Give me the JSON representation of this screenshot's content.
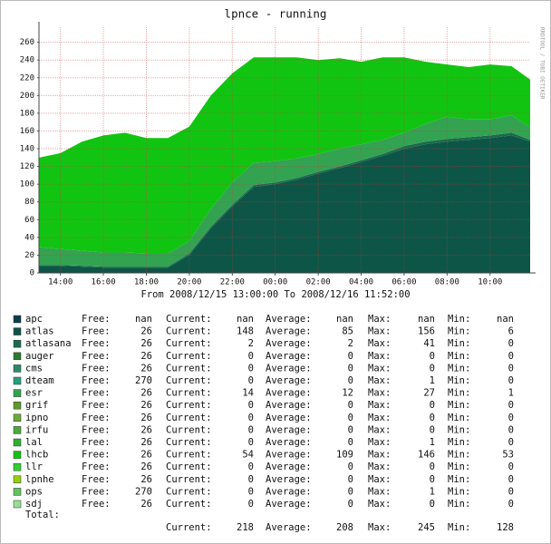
{
  "chart_data": {
    "type": "stacked-area",
    "title": "lpnce - running",
    "subtitle": "From 2008/12/15 13:00:00 To 2008/12/16 11:52:00",
    "watermark": "RRDTOOL / TOBI OETIKER",
    "x": [
      "13:00",
      "14:00",
      "15:00",
      "16:00",
      "17:00",
      "18:00",
      "19:00",
      "20:00",
      "21:00",
      "22:00",
      "23:00",
      "00:00",
      "01:00",
      "02:00",
      "03:00",
      "04:00",
      "05:00",
      "06:00",
      "07:00",
      "08:00",
      "09:00",
      "10:00",
      "11:00",
      "11:52"
    ],
    "xlim": [
      "13:00",
      "11:52"
    ],
    "xticks": [
      "14:00",
      "16:00",
      "18:00",
      "20:00",
      "22:00",
      "00:00",
      "02:00",
      "04:00",
      "06:00",
      "08:00",
      "10:00"
    ],
    "ylim": [
      0,
      277
    ],
    "yticks": [
      0,
      20,
      40,
      60,
      80,
      100,
      120,
      140,
      160,
      180,
      200,
      220,
      240,
      260
    ],
    "grid": true,
    "legend_labels": {
      "free": "Free:",
      "current": "Current:",
      "average": "Average:",
      "max": "Max:",
      "min": "Min:"
    },
    "series": [
      {
        "name": "apc",
        "color": "#0b3c4e",
        "free": "nan",
        "current": "nan",
        "average": "nan",
        "max": "nan",
        "min": "nan"
      },
      {
        "name": "atlas",
        "color": "#0d5547",
        "free": 26,
        "current": 148,
        "average": 85,
        "max": 156,
        "min": 6,
        "values": [
          8,
          8,
          7,
          6,
          6,
          6,
          6,
          20,
          50,
          75,
          97,
          100,
          105,
          112,
          118,
          125,
          132,
          140,
          145,
          148,
          150,
          152,
          155,
          148
        ]
      },
      {
        "name": "atlasana",
        "color": "#1b6a4c",
        "free": 26,
        "current": 2,
        "average": 2,
        "max": 41,
        "min": 0,
        "values": [
          1,
          1,
          1,
          1,
          1,
          1,
          1,
          2,
          2,
          2,
          2,
          2,
          2,
          2,
          2,
          2,
          2,
          3,
          3,
          3,
          3,
          3,
          3,
          2
        ]
      },
      {
        "name": "auger",
        "color": "#2c7a2c",
        "free": 26,
        "current": 0,
        "average": 0,
        "max": 0,
        "min": 0
      },
      {
        "name": "cms",
        "color": "#2a8a6c",
        "free": 26,
        "current": 0,
        "average": 0,
        "max": 0,
        "min": 0
      },
      {
        "name": "dteam",
        "color": "#24a07e",
        "free": 270,
        "current": 0,
        "average": 0,
        "max": 1,
        "min": 0
      },
      {
        "name": "esr",
        "color": "#33a352",
        "free": 26,
        "current": 14,
        "average": 12,
        "max": 27,
        "min": 1,
        "values": [
          20,
          18,
          17,
          16,
          16,
          15,
          15,
          14,
          20,
          25,
          25,
          24,
          22,
          20,
          20,
          18,
          16,
          15,
          20,
          25,
          20,
          18,
          20,
          14
        ]
      },
      {
        "name": "grif",
        "color": "#5c9a2c",
        "free": 26,
        "current": 0,
        "average": 0,
        "max": 0,
        "min": 0
      },
      {
        "name": "ipno",
        "color": "#6aaa3a",
        "free": 26,
        "current": 0,
        "average": 0,
        "max": 0,
        "min": 0
      },
      {
        "name": "irfu",
        "color": "#4aaa3a",
        "free": 26,
        "current": 0,
        "average": 0,
        "max": 0,
        "min": 0
      },
      {
        "name": "lal",
        "color": "#2eb02e",
        "free": 26,
        "current": 0,
        "average": 0,
        "max": 1,
        "min": 0
      },
      {
        "name": "lhcb",
        "color": "#12c412",
        "free": 26,
        "current": 54,
        "average": 109,
        "max": 146,
        "min": 53,
        "values": [
          101,
          108,
          123,
          132,
          135,
          130,
          130,
          129,
          128,
          123,
          119,
          117,
          114,
          106,
          102,
          93,
          93,
          85,
          70,
          59,
          59,
          62,
          55,
          54
        ]
      },
      {
        "name": "llr",
        "color": "#30d030",
        "free": 26,
        "current": 0,
        "average": 0,
        "max": 0,
        "min": 0
      },
      {
        "name": "lpnhe",
        "color": "#94d010",
        "free": 26,
        "current": 0,
        "average": 0,
        "max": 0,
        "min": 0
      },
      {
        "name": "ops",
        "color": "#62c262",
        "free": 270,
        "current": 0,
        "average": 0,
        "max": 1,
        "min": 0
      },
      {
        "name": "sdj",
        "color": "#94e094",
        "free": 26,
        "current": 0,
        "average": 0,
        "max": 0,
        "min": 0
      }
    ],
    "total": {
      "label": "Total:",
      "current": 218,
      "average": 208,
      "max": 245,
      "min": 128
    }
  }
}
